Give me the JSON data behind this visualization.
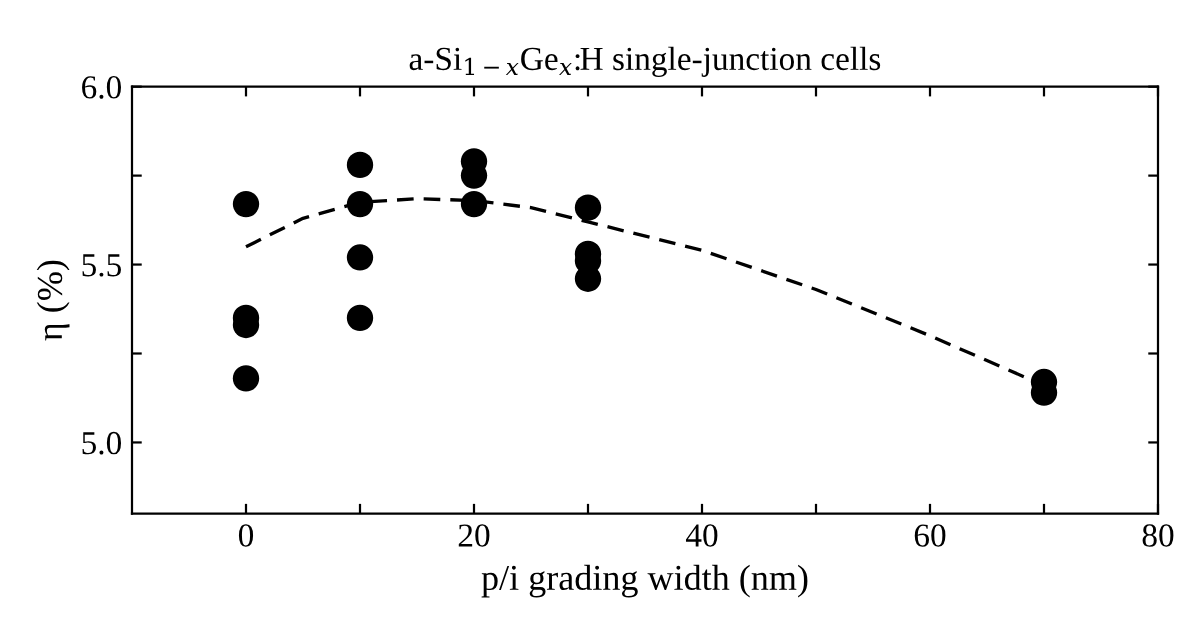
{
  "chart_data": {
    "type": "scatter",
    "title": "a-Si$_{1−x}$Ge$_{x}$:H single-junction cells",
    "xlabel": "p/i grading width (nm)",
    "ylabel": "η (%)",
    "xlim": [
      -10,
      80
    ],
    "ylim": [
      4.8,
      6.0
    ],
    "xticks": [
      0,
      {
        "value": 10,
        "label": null
      },
      20,
      {
        "value": 30,
        "label": null
      },
      40,
      {
        "value": 50,
        "label": null
      },
      60,
      {
        "value": 70,
        "label": null
      },
      80
    ],
    "yticks": [
      {
        "value": 5.0,
        "label": "5.0"
      },
      {
        "value": 5.25,
        "label": null
      },
      5.5,
      {
        "value": 5.75,
        "label": null
      },
      {
        "value": 6.0,
        "label": "6.0"
      }
    ],
    "series": [
      {
        "color": "#000000",
        "marker": "circle",
        "x": [
          0,
          0,
          0,
          0,
          10,
          10,
          10,
          10,
          20,
          20,
          20,
          30,
          30,
          30,
          30,
          70,
          70
        ],
        "values": [
          5.67,
          5.35,
          5.33,
          5.18,
          5.78,
          5.67,
          5.52,
          5.35,
          5.79,
          5.75,
          5.67,
          5.66,
          5.53,
          5.51,
          5.46,
          5.17,
          5.14
        ]
      },
      {
        "type": "line",
        "color": "#000000",
        "line_style": "dashed",
        "x": [
          0,
          5,
          10,
          15,
          20,
          25,
          30,
          40,
          50,
          60,
          70
        ],
        "values": [
          5.55,
          5.63,
          5.675,
          5.685,
          5.68,
          5.66,
          5.62,
          5.54,
          5.43,
          5.3,
          5.16
        ]
      }
    ],
    "grid": false,
    "legend": false
  }
}
